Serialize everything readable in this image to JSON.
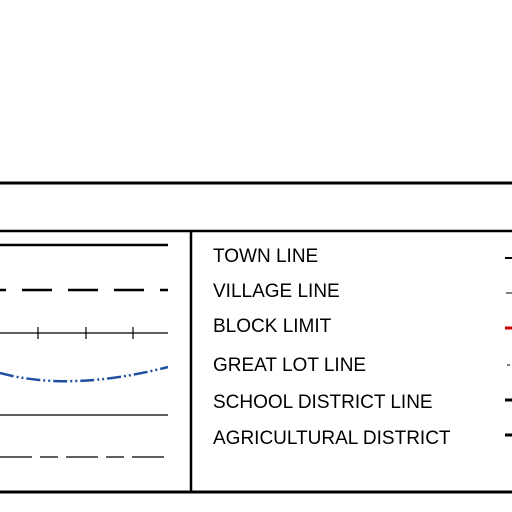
{
  "legend": {
    "items": [
      {
        "label": "TOWN LINE"
      },
      {
        "label": "VILLAGE LINE"
      },
      {
        "label": "BLOCK LIMIT"
      },
      {
        "label": "GREAT LOT LINE"
      },
      {
        "label": "SCHOOL DISTRICT LINE"
      },
      {
        "label": "AGRICULTURAL DISTRICT"
      }
    ]
  }
}
